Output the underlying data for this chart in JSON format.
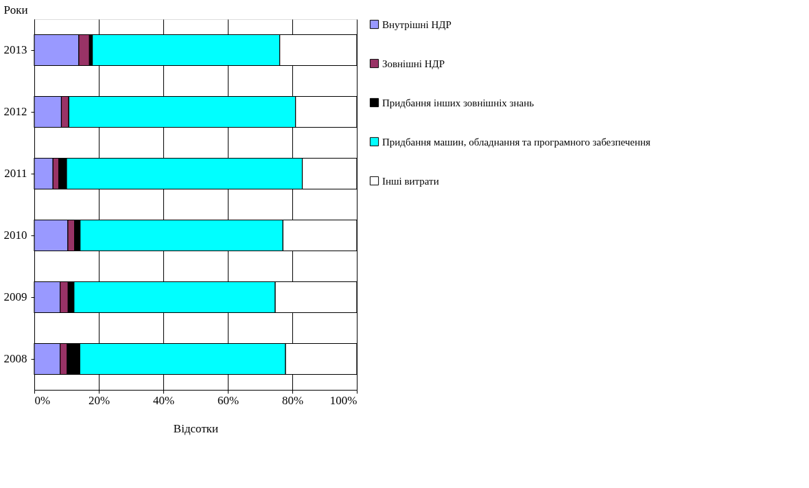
{
  "chart_data": {
    "type": "bar",
    "orientation": "horizontal",
    "stacked": true,
    "xlabel": "Відсотки",
    "ylabel": "Роки",
    "categories": [
      "2013",
      "2012",
      "2011",
      "2010",
      "2009",
      "2008"
    ],
    "series": [
      {
        "name": "Внутрішні НДР",
        "color": "#9999ff",
        "values": [
          13.8,
          8.4,
          5.8,
          10.4,
          8.0,
          8.0
        ]
      },
      {
        "name": "Зовнішні НДР",
        "color": "#993366",
        "values": [
          3.3,
          2.3,
          1.8,
          2.1,
          2.5,
          2.2
        ]
      },
      {
        "name": "Придбання інших зовнішніх знань",
        "color": "#000000",
        "values": [
          0.9,
          0,
          2.4,
          1.7,
          1.8,
          3.9
        ]
      },
      {
        "name": "Придбання машин, обладнання та програмного забезпечення",
        "color": "#00ffff",
        "values": [
          58.1,
          70.3,
          73.1,
          62.9,
          62.4,
          63.8
        ]
      },
      {
        "name": "Інші витрати",
        "color": "#ffffff",
        "values": [
          23.9,
          19.0,
          16.9,
          22.9,
          25.3,
          22.1
        ]
      }
    ],
    "xlim": [
      0,
      100
    ],
    "xticks": [
      {
        "value": 0,
        "label": "0%"
      },
      {
        "value": 20,
        "label": "20%"
      },
      {
        "value": 40,
        "label": "40%"
      },
      {
        "value": 60,
        "label": "60%"
      },
      {
        "value": 80,
        "label": "80%"
      },
      {
        "value": 100,
        "label": "100%"
      }
    ],
    "grid": "x",
    "legend": "right"
  }
}
